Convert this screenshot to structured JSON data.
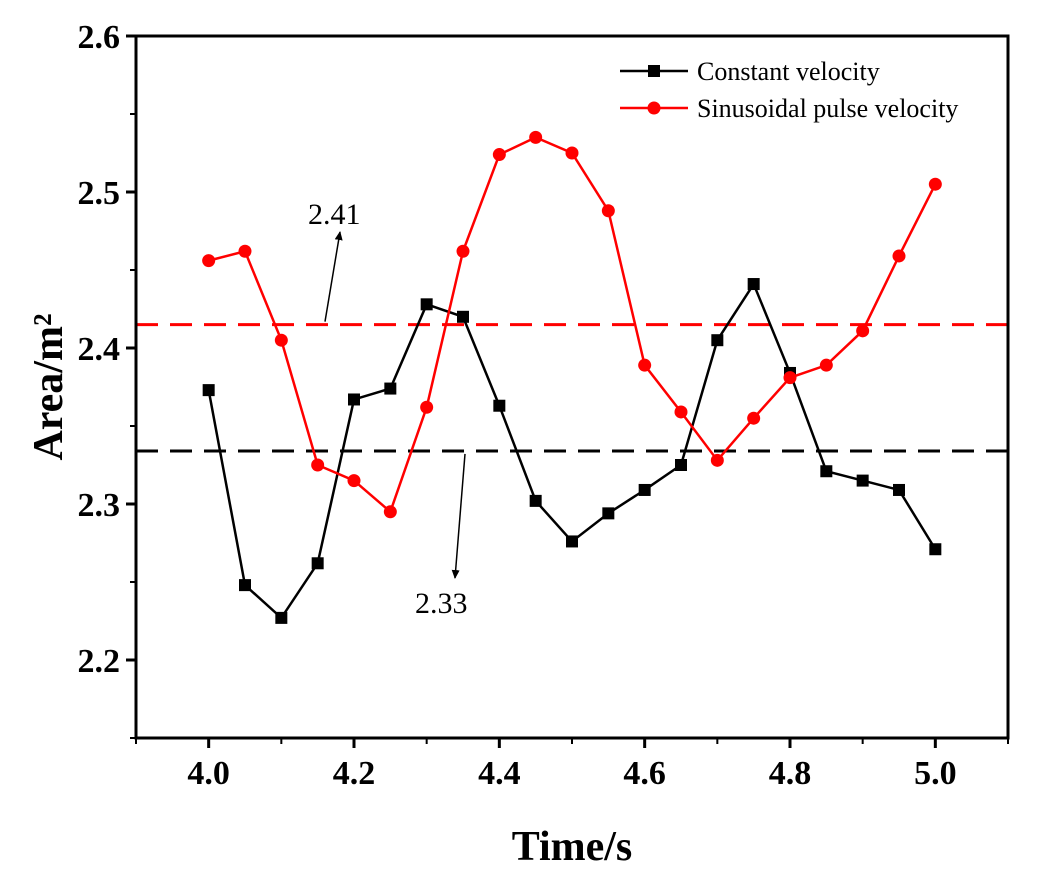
{
  "chart_data": {
    "type": "line",
    "xlabel": "Time/s",
    "ylabel": "Area/m²",
    "xlim": [
      3.9,
      5.1
    ],
    "ylim": [
      2.15,
      2.6
    ],
    "xticks": [
      "4.0",
      "4.2",
      "4.4",
      "4.6",
      "4.8",
      "5.0"
    ],
    "yticks": [
      "2.2",
      "2.3",
      "2.4",
      "2.5",
      "2.6"
    ],
    "x": [
      4.0,
      4.05,
      4.1,
      4.15,
      4.2,
      4.25,
      4.3,
      4.35,
      4.4,
      4.45,
      4.5,
      4.55,
      4.6,
      4.65,
      4.7,
      4.75,
      4.8,
      4.85,
      4.9,
      4.95,
      5.0
    ],
    "series": [
      {
        "name": "Constant velocity",
        "color": "#000000",
        "marker": "square",
        "values": [
          2.373,
          2.248,
          2.227,
          2.262,
          2.367,
          2.374,
          2.428,
          2.42,
          2.363,
          2.302,
          2.276,
          2.294,
          2.309,
          2.325,
          2.405,
          2.441,
          2.384,
          2.321,
          2.315,
          2.309,
          2.271
        ]
      },
      {
        "name": "Sinusoidal pulse velocity",
        "color": "#ff0000",
        "marker": "circle",
        "values": [
          2.456,
          2.462,
          2.405,
          2.325,
          2.315,
          2.295,
          2.362,
          2.462,
          2.524,
          2.535,
          2.525,
          2.488,
          2.389,
          2.359,
          2.328,
          2.355,
          2.381,
          2.389,
          2.411,
          2.459,
          2.505
        ]
      }
    ],
    "reference_lines": [
      {
        "y": 2.415,
        "color": "#ff0000",
        "style": "dashed",
        "label": "2.41"
      },
      {
        "y": 2.334,
        "color": "#000000",
        "style": "dashed",
        "label": "2.33"
      }
    ],
    "legend": "top-right",
    "grid": false
  }
}
